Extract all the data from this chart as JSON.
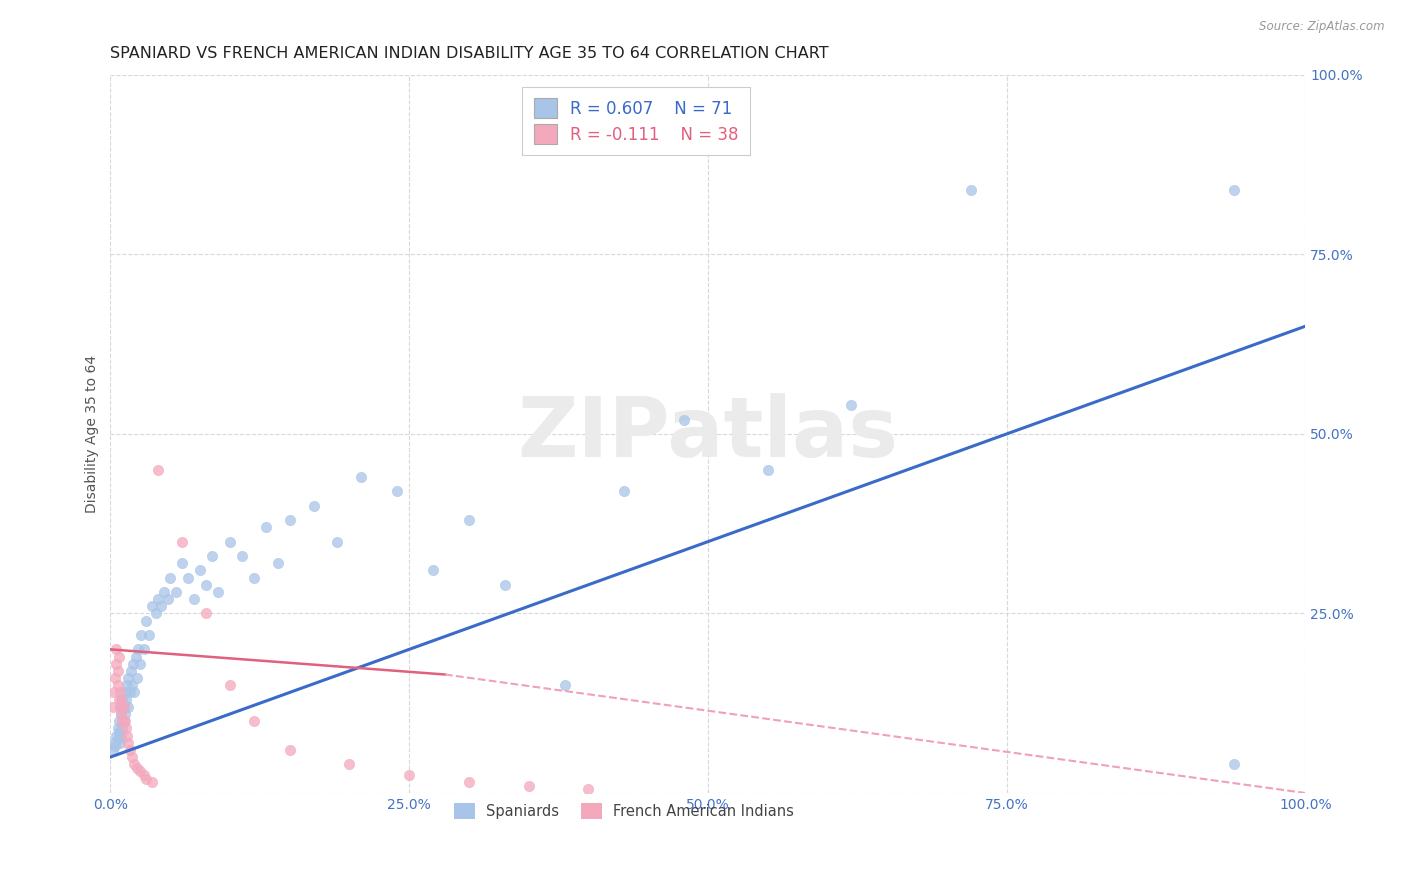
{
  "title": "SPANIARD VS FRENCH AMERICAN INDIAN DISABILITY AGE 35 TO 64 CORRELATION CHART",
  "source": "Source: ZipAtlas.com",
  "ylabel": "Disability Age 35 to 64",
  "xlim": [
    0.0,
    1.0
  ],
  "ylim": [
    0.0,
    1.0
  ],
  "spaniard_color": "#a8c4e8",
  "french_color": "#f4a8bc",
  "trend_spaniard_color": "#3a6bc9",
  "trend_french_color": "#e0607e",
  "trend_french_dashed_color": "#f0a0b8",
  "background_color": "#ffffff",
  "grid_color": "#d8d8d8",
  "title_fontsize": 11.5,
  "axis_label_fontsize": 10,
  "tick_fontsize": 10,
  "legend_fontsize": 12,
  "spaniard_x": [
    0.002,
    0.003,
    0.004,
    0.005,
    0.006,
    0.006,
    0.007,
    0.007,
    0.008,
    0.008,
    0.009,
    0.009,
    0.01,
    0.01,
    0.011,
    0.011,
    0.012,
    0.012,
    0.013,
    0.014,
    0.015,
    0.015,
    0.016,
    0.017,
    0.018,
    0.019,
    0.02,
    0.021,
    0.022,
    0.023,
    0.025,
    0.026,
    0.028,
    0.03,
    0.032,
    0.035,
    0.038,
    0.04,
    0.042,
    0.045,
    0.048,
    0.05,
    0.055,
    0.06,
    0.065,
    0.07,
    0.075,
    0.08,
    0.085,
    0.09,
    0.1,
    0.11,
    0.12,
    0.13,
    0.14,
    0.15,
    0.17,
    0.19,
    0.21,
    0.24,
    0.27,
    0.3,
    0.33,
    0.38,
    0.43,
    0.48,
    0.55,
    0.62,
    0.72,
    0.94,
    0.94
  ],
  "spaniard_y": [
    0.06,
    0.07,
    0.065,
    0.08,
    0.075,
    0.09,
    0.085,
    0.1,
    0.07,
    0.12,
    0.08,
    0.11,
    0.09,
    0.13,
    0.1,
    0.12,
    0.11,
    0.14,
    0.13,
    0.15,
    0.12,
    0.16,
    0.14,
    0.17,
    0.15,
    0.18,
    0.14,
    0.19,
    0.16,
    0.2,
    0.18,
    0.22,
    0.2,
    0.24,
    0.22,
    0.26,
    0.25,
    0.27,
    0.26,
    0.28,
    0.27,
    0.3,
    0.28,
    0.32,
    0.3,
    0.27,
    0.31,
    0.29,
    0.33,
    0.28,
    0.35,
    0.33,
    0.3,
    0.37,
    0.32,
    0.38,
    0.4,
    0.35,
    0.44,
    0.42,
    0.31,
    0.38,
    0.29,
    0.15,
    0.42,
    0.52,
    0.45,
    0.54,
    0.84,
    0.84,
    0.04
  ],
  "french_x": [
    0.002,
    0.003,
    0.004,
    0.005,
    0.005,
    0.006,
    0.006,
    0.007,
    0.007,
    0.008,
    0.008,
    0.009,
    0.009,
    0.01,
    0.011,
    0.012,
    0.013,
    0.014,
    0.015,
    0.016,
    0.018,
    0.02,
    0.022,
    0.025,
    0.028,
    0.03,
    0.035,
    0.04,
    0.06,
    0.08,
    0.1,
    0.12,
    0.15,
    0.2,
    0.25,
    0.3,
    0.35,
    0.4
  ],
  "french_y": [
    0.12,
    0.14,
    0.16,
    0.18,
    0.2,
    0.15,
    0.17,
    0.13,
    0.19,
    0.12,
    0.14,
    0.11,
    0.13,
    0.1,
    0.12,
    0.1,
    0.09,
    0.08,
    0.07,
    0.06,
    0.05,
    0.04,
    0.035,
    0.03,
    0.025,
    0.02,
    0.015,
    0.45,
    0.35,
    0.25,
    0.15,
    0.1,
    0.06,
    0.04,
    0.025,
    0.015,
    0.01,
    0.005
  ],
  "trend_spaniard_x0": 0.0,
  "trend_spaniard_y0": 0.05,
  "trend_spaniard_x1": 1.0,
  "trend_spaniard_y1": 0.65,
  "trend_french_solid_x0": 0.0,
  "trend_french_solid_y0": 0.2,
  "trend_french_solid_x1": 0.28,
  "trend_french_solid_y1": 0.165,
  "trend_french_dash_x0": 0.28,
  "trend_french_dash_y0": 0.165,
  "trend_french_dash_x1": 1.0,
  "trend_french_dash_y1": 0.0
}
